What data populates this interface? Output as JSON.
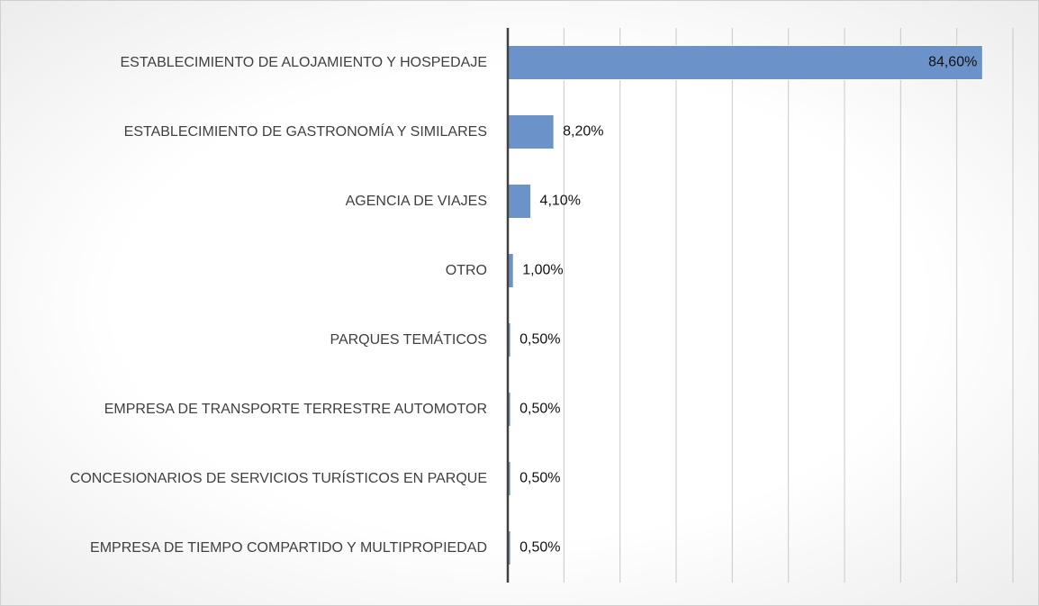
{
  "chart_data": {
    "type": "hbar",
    "categories": [
      "ESTABLECIMIENTO DE ALOJAMIENTO Y HOSPEDAJE",
      "ESTABLECIMIENTO DE GASTRONOMÍA Y SIMILARES",
      "AGENCIA DE VIAJES",
      "OTRO",
      "PARQUES TEMÁTICOS",
      "EMPRESA DE TRANSPORTE TERRESTRE AUTOMOTOR",
      "CONCESIONARIOS DE SERVICIOS TURÍSTICOS EN PARQUE",
      "EMPRESA DE TIEMPO COMPARTIDO Y MULTIPROPIEDAD"
    ],
    "values": [
      84.6,
      8.2,
      4.1,
      1.0,
      0.5,
      0.5,
      0.5,
      0.5
    ],
    "value_labels": [
      "84,60%",
      "8,20%",
      "4,10%",
      "1,00%",
      "0,50%",
      "0,50%",
      "0,50%",
      "0,50%"
    ],
    "color": "#6b93c9",
    "xlim": [
      0,
      90
    ],
    "xticks": [
      10,
      20,
      30,
      40,
      50,
      60,
      70,
      80,
      90
    ],
    "grid": true
  }
}
